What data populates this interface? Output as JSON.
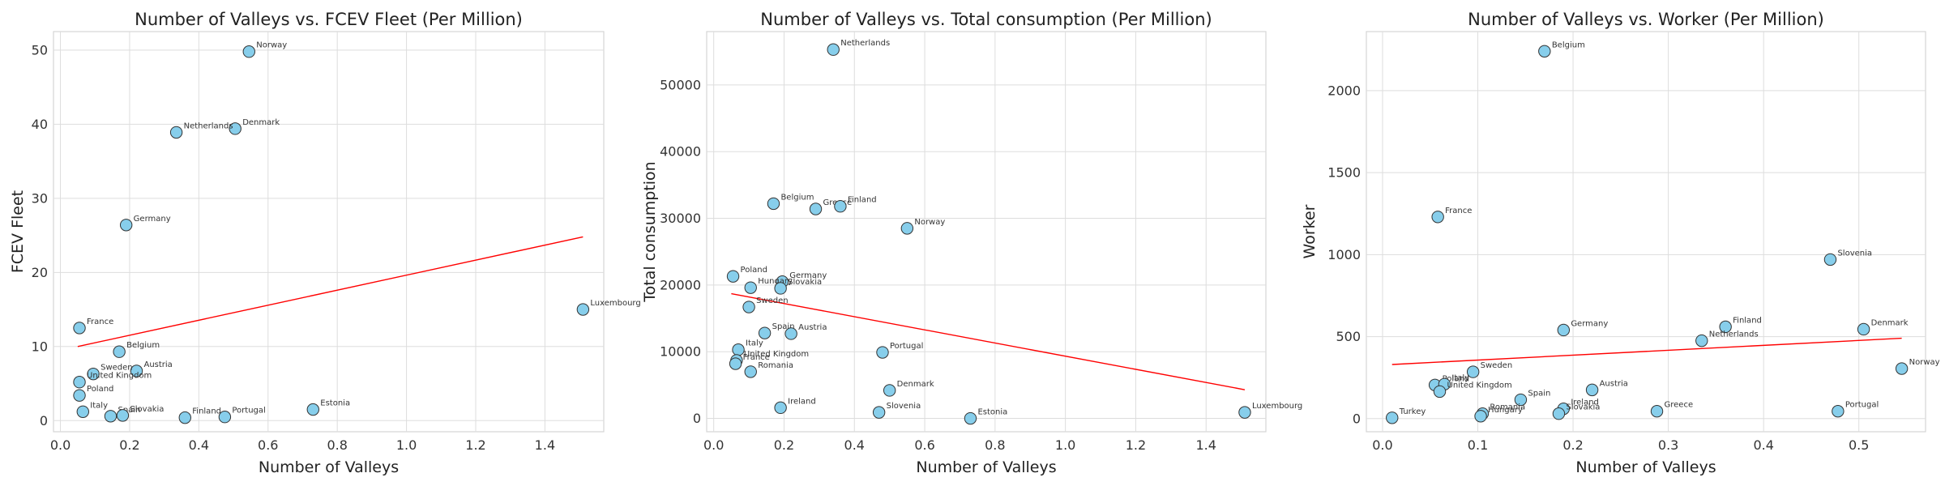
{
  "chart_data": [
    {
      "type": "scatter",
      "title": "Number of Valleys vs. FCEV Fleet (Per Million)",
      "xlabel": "Number of Valleys",
      "ylabel": "FCEV Fleet",
      "xlim": [
        -0.02,
        1.57
      ],
      "ylim": [
        -1.5,
        52.5
      ],
      "xticks": [
        0.0,
        0.2,
        0.4,
        0.6,
        0.8,
        1.0,
        1.2,
        1.4
      ],
      "xtick_labels": [
        "0.0",
        "0.2",
        "0.4",
        "0.6",
        "0.8",
        "1.0",
        "1.2",
        "1.4"
      ],
      "yticks": [
        0,
        10,
        20,
        30,
        40,
        50
      ],
      "ytick_labels": [
        "0",
        "10",
        "20",
        "30",
        "40",
        "50"
      ],
      "grid": true,
      "marker_color": "#87ceeb",
      "trend_color": "#ff0000",
      "trend": {
        "x": [
          0.05,
          1.51
        ],
        "y": [
          10.0,
          24.8
        ]
      },
      "points": [
        {
          "label": "Norway",
          "x": 0.545,
          "y": 49.8
        },
        {
          "label": "Denmark",
          "x": 0.505,
          "y": 39.4
        },
        {
          "label": "Netherlands",
          "x": 0.335,
          "y": 38.9
        },
        {
          "label": "Germany",
          "x": 0.19,
          "y": 26.4
        },
        {
          "label": "Luxembourg",
          "x": 1.51,
          "y": 15.0
        },
        {
          "label": "France",
          "x": 0.055,
          "y": 12.5
        },
        {
          "label": "Belgium",
          "x": 0.17,
          "y": 9.3
        },
        {
          "label": "Austria",
          "x": 0.22,
          "y": 6.7
        },
        {
          "label": "Sweden",
          "x": 0.095,
          "y": 6.3
        },
        {
          "label": "United Kingdom",
          "x": 0.055,
          "y": 5.2
        },
        {
          "label": "Poland",
          "x": 0.055,
          "y": 3.4
        },
        {
          "label": "Italy",
          "x": 0.065,
          "y": 1.2
        },
        {
          "label": "Spain",
          "x": 0.145,
          "y": 0.6
        },
        {
          "label": "Slovakia",
          "x": 0.18,
          "y": 0.7
        },
        {
          "label": "Finland",
          "x": 0.36,
          "y": 0.4
        },
        {
          "label": "Portugal",
          "x": 0.475,
          "y": 0.5
        },
        {
          "label": "Estonia",
          "x": 0.73,
          "y": 1.5
        }
      ]
    },
    {
      "type": "scatter",
      "title": "Number of Valleys vs. Total consumption (Per Million)",
      "xlabel": "Number of Valleys",
      "ylabel": "Total consumption",
      "xlim": [
        -0.02,
        1.57
      ],
      "ylim": [
        -2000,
        58000
      ],
      "xticks": [
        0.0,
        0.2,
        0.4,
        0.6,
        0.8,
        1.0,
        1.2,
        1.4
      ],
      "xtick_labels": [
        "0.0",
        "0.2",
        "0.4",
        "0.6",
        "0.8",
        "1.0",
        "1.2",
        "1.4"
      ],
      "yticks": [
        0,
        10000,
        20000,
        30000,
        40000,
        50000
      ],
      "ytick_labels": [
        "0",
        "10000",
        "20000",
        "30000",
        "40000",
        "50000"
      ],
      "grid": true,
      "marker_color": "#87ceeb",
      "trend_color": "#ff0000",
      "trend": {
        "x": [
          0.05,
          1.51
        ],
        "y": [
          18700,
          4300
        ]
      },
      "points": [
        {
          "label": "Netherlands",
          "x": 0.34,
          "y": 55300
        },
        {
          "label": "Belgium",
          "x": 0.17,
          "y": 32200
        },
        {
          "label": "Greece",
          "x": 0.29,
          "y": 31400
        },
        {
          "label": "Finland",
          "x": 0.36,
          "y": 31800
        },
        {
          "label": "Norway",
          "x": 0.55,
          "y": 28500
        },
        {
          "label": "Poland",
          "x": 0.055,
          "y": 21300
        },
        {
          "label": "Germany",
          "x": 0.195,
          "y": 20500
        },
        {
          "label": "Hungary",
          "x": 0.105,
          "y": 19600
        },
        {
          "label": "Slovakia",
          "x": 0.19,
          "y": 19500
        },
        {
          "label": "Sweden",
          "x": 0.1,
          "y": 16700
        },
        {
          "label": "Spain",
          "x": 0.145,
          "y": 12800
        },
        {
          "label": "Austria",
          "x": 0.22,
          "y": 12700
        },
        {
          "label": "Italy",
          "x": 0.07,
          "y": 10300
        },
        {
          "label": "United Kingdom",
          "x": 0.065,
          "y": 8700
        },
        {
          "label": "France",
          "x": 0.062,
          "y": 8200
        },
        {
          "label": "Romania",
          "x": 0.105,
          "y": 7000
        },
        {
          "label": "Portugal",
          "x": 0.48,
          "y": 9900
        },
        {
          "label": "Denmark",
          "x": 0.5,
          "y": 4200
        },
        {
          "label": "Ireland",
          "x": 0.19,
          "y": 1600
        },
        {
          "label": "Slovenia",
          "x": 0.47,
          "y": 900
        },
        {
          "label": "Estonia",
          "x": 0.73,
          "y": 0
        },
        {
          "label": "Luxembourg",
          "x": 1.51,
          "y": 900
        }
      ]
    },
    {
      "type": "scatter",
      "title": "Number of Valleys vs. Worker (Per Million)",
      "xlabel": "Number of Valleys",
      "ylabel": "Worker",
      "xlim": [
        -0.017,
        0.57
      ],
      "ylim": [
        -80,
        2360
      ],
      "xticks": [
        0.0,
        0.1,
        0.2,
        0.3,
        0.4,
        0.5
      ],
      "xtick_labels": [
        "0.0",
        "0.1",
        "0.2",
        "0.3",
        "0.4",
        "0.5"
      ],
      "yticks": [
        0,
        500,
        1000,
        1500,
        2000
      ],
      "ytick_labels": [
        "0",
        "500",
        "1000",
        "1500",
        "2000"
      ],
      "grid": true,
      "marker_color": "#87ceeb",
      "trend_color": "#ff0000",
      "trend": {
        "x": [
          0.01,
          0.545
        ],
        "y": [
          330,
          490
        ]
      },
      "points": [
        {
          "label": "Belgium",
          "x": 0.17,
          "y": 2240
        },
        {
          "label": "France",
          "x": 0.058,
          "y": 1230
        },
        {
          "label": "Slovenia",
          "x": 0.47,
          "y": 970
        },
        {
          "label": "Finland",
          "x": 0.36,
          "y": 560
        },
        {
          "label": "Denmark",
          "x": 0.505,
          "y": 545
        },
        {
          "label": "Germany",
          "x": 0.19,
          "y": 540
        },
        {
          "label": "Netherlands",
          "x": 0.335,
          "y": 475
        },
        {
          "label": "Norway",
          "x": 0.545,
          "y": 305
        },
        {
          "label": "Sweden",
          "x": 0.095,
          "y": 285
        },
        {
          "label": "Poland",
          "x": 0.055,
          "y": 205
        },
        {
          "label": "Italy",
          "x": 0.065,
          "y": 210
        },
        {
          "label": "United Kingdom",
          "x": 0.06,
          "y": 165
        },
        {
          "label": "Austria",
          "x": 0.22,
          "y": 175
        },
        {
          "label": "Spain",
          "x": 0.145,
          "y": 115
        },
        {
          "label": "Ireland",
          "x": 0.19,
          "y": 60
        },
        {
          "label": "Slovakia",
          "x": 0.185,
          "y": 30
        },
        {
          "label": "Romania",
          "x": 0.105,
          "y": 30
        },
        {
          "label": "Hungary",
          "x": 0.103,
          "y": 15
        },
        {
          "label": "Greece",
          "x": 0.288,
          "y": 45
        },
        {
          "label": "Portugal",
          "x": 0.478,
          "y": 45
        },
        {
          "label": "Turkey",
          "x": 0.01,
          "y": 5
        }
      ]
    }
  ]
}
